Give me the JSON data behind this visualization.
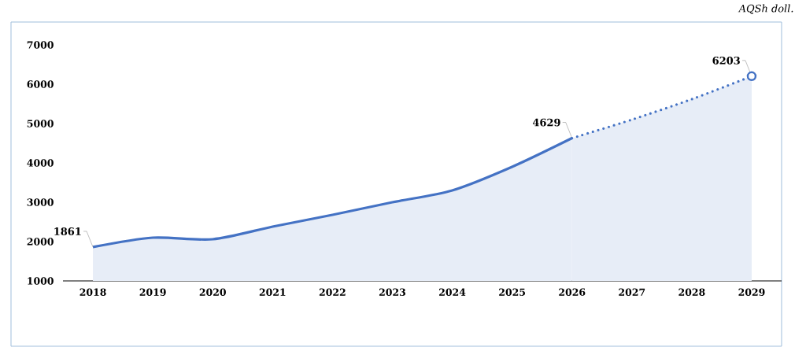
{
  "chart_data": {
    "type": "area",
    "ylabel": "AQSh doll.",
    "categories": [
      "2018",
      "2019",
      "2020",
      "2021",
      "2022",
      "2023",
      "2024",
      "2025",
      "2026",
      "2027",
      "2028",
      "2029"
    ],
    "series": [
      {
        "color": "#4472c4",
        "line_style": "solid",
        "values": [
          1861,
          2100,
          2060,
          2380,
          2680,
          3000,
          3300,
          3900,
          4629,
          null,
          null,
          null
        ],
        "value_labels": [
          "1861",
          null,
          null,
          null,
          null,
          null,
          null,
          null,
          "4629",
          null,
          null,
          null
        ]
      },
      {
        "color": "#4472c4",
        "line_style": "dotted",
        "values": [
          null,
          null,
          null,
          null,
          null,
          null,
          null,
          null,
          4629,
          5100,
          5620,
          6203
        ],
        "value_labels": [
          null,
          null,
          null,
          null,
          null,
          null,
          null,
          null,
          null,
          null,
          null,
          "6203"
        ]
      },
      {
        "type": "scatter",
        "color": "#4472c4",
        "marker": "circle",
        "values": [
          null,
          null,
          null,
          null,
          null,
          null,
          null,
          null,
          null,
          null,
          null,
          6203
        ]
      }
    ],
    "ylim": [
      1000,
      7000
    ],
    "yticks": [
      1000,
      2000,
      3000,
      4000,
      5000,
      6000,
      7000
    ],
    "grid": false
  }
}
